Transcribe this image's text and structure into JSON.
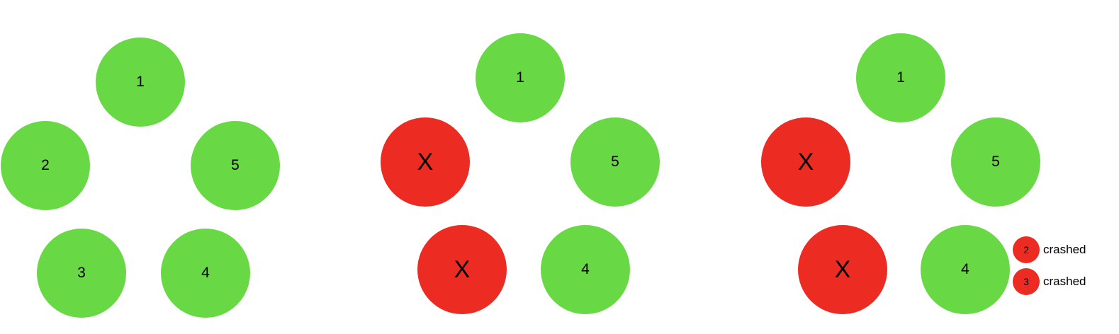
{
  "colors": {
    "alive": "#68d944",
    "crashed": "#ec2b23",
    "text": "#000000"
  },
  "panels": [
    {
      "nodes": [
        {
          "label": "1",
          "state": "alive"
        },
        {
          "label": "2",
          "state": "alive"
        },
        {
          "label": "5",
          "state": "alive"
        },
        {
          "label": "3",
          "state": "alive"
        },
        {
          "label": "4",
          "state": "alive"
        }
      ]
    },
    {
      "nodes": [
        {
          "label": "1",
          "state": "alive"
        },
        {
          "label": "X",
          "state": "crashed"
        },
        {
          "label": "5",
          "state": "alive"
        },
        {
          "label": "X",
          "state": "crashed"
        },
        {
          "label": "4",
          "state": "alive"
        }
      ]
    },
    {
      "nodes": [
        {
          "label": "1",
          "state": "alive"
        },
        {
          "label": "X",
          "state": "crashed"
        },
        {
          "label": "5",
          "state": "alive"
        },
        {
          "label": "X",
          "state": "crashed"
        },
        {
          "label": "4",
          "state": "alive"
        }
      ],
      "legend": [
        {
          "node": "2",
          "status": "crashed"
        },
        {
          "node": "3",
          "status": "crashed"
        }
      ]
    }
  ]
}
